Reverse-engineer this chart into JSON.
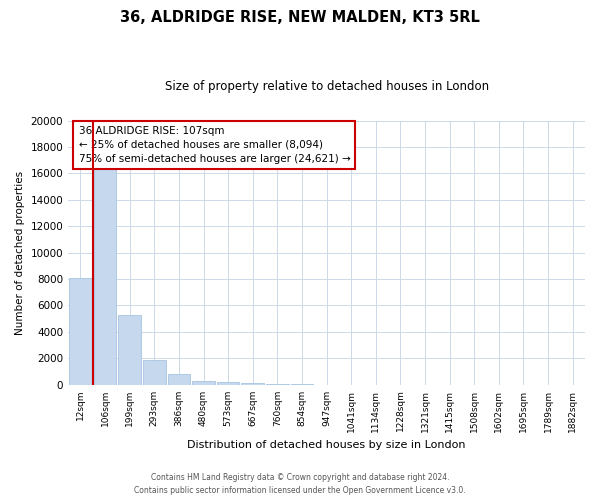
{
  "title": "36, ALDRIDGE RISE, NEW MALDEN, KT3 5RL",
  "subtitle": "Size of property relative to detached houses in London",
  "xlabel": "Distribution of detached houses by size in London",
  "ylabel": "Number of detached properties",
  "bar_labels": [
    "12sqm",
    "106sqm",
    "199sqm",
    "293sqm",
    "386sqm",
    "480sqm",
    "573sqm",
    "667sqm",
    "760sqm",
    "854sqm",
    "947sqm",
    "1041sqm",
    "1134sqm",
    "1228sqm",
    "1321sqm",
    "1415sqm",
    "1508sqm",
    "1602sqm",
    "1695sqm",
    "1789sqm",
    "1882sqm"
  ],
  "bar_values": [
    8094,
    16600,
    5300,
    1850,
    800,
    300,
    200,
    120,
    80,
    50,
    0,
    0,
    0,
    0,
    0,
    0,
    0,
    0,
    0,
    0,
    0
  ],
  "bar_color": "#c5d8ed",
  "bar_edge_color": "#a8c4e0",
  "ylim": [
    0,
    20000
  ],
  "yticks": [
    0,
    2000,
    4000,
    6000,
    8000,
    10000,
    12000,
    14000,
    16000,
    18000,
    20000
  ],
  "annotation_title": "36 ALDRIDGE RISE: 107sqm",
  "annotation_line1": "← 25% of detached houses are smaller (8,094)",
  "annotation_line2": "75% of semi-detached houses are larger (24,621) →",
  "annotation_box_color": "#ffffff",
  "annotation_box_edge": "#cc0000",
  "footer_line1": "Contains HM Land Registry data © Crown copyright and database right 2024.",
  "footer_line2": "Contains public sector information licensed under the Open Government Licence v3.0.",
  "marker_line_color": "#cc0000",
  "background_color": "#ffffff",
  "grid_color": "#ccd9e8"
}
